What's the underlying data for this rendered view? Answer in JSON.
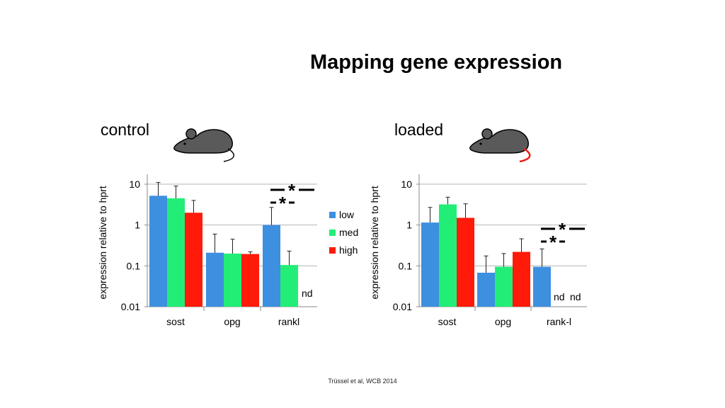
{
  "slide": {
    "title": "Mapping gene expression",
    "citation": "Trüssel et al, WCB 2014",
    "mouse_icon": "mouse-icon",
    "tail_colors": {
      "control": "#000000",
      "loaded": "#e8201a"
    }
  },
  "colors": {
    "low": "#3d8fe0",
    "med": "#22ee77",
    "high": "#ff1a0a"
  },
  "chart_data": [
    {
      "type": "bar",
      "panel": "control",
      "title": "control",
      "ylabel": "expression relative to hprt",
      "xlabel": "",
      "yscale": "log",
      "ylim": [
        0.01,
        10
      ],
      "yticks": [
        "10",
        "1",
        "0.1",
        "0.01"
      ],
      "yticks_values": [
        10,
        1,
        0.1,
        0.01
      ],
      "categories": [
        "sost",
        "opg",
        "rankl"
      ],
      "series": [
        {
          "name": "low",
          "values": [
            5.2,
            0.21,
            1.0
          ],
          "errors": [
            11,
            0.6,
            2.7
          ]
        },
        {
          "name": "med",
          "values": [
            4.5,
            0.2,
            0.105
          ],
          "errors": [
            9,
            0.45,
            0.23
          ]
        },
        {
          "name": "high",
          "values": [
            2.0,
            0.195,
            null
          ],
          "errors": [
            4,
            0.22,
            null
          ]
        }
      ],
      "legend": {
        "position": "right",
        "entries": [
          "low",
          "med",
          "high"
        ]
      },
      "annotations": {
        "nd": [
          "nd"
        ],
        "significance": [
          "*",
          "*"
        ]
      },
      "grid": true
    },
    {
      "type": "bar",
      "panel": "loaded",
      "title": "loaded",
      "ylabel": "expression relative to hprt",
      "xlabel": "",
      "yscale": "log",
      "ylim": [
        0.01,
        10
      ],
      "yticks": [
        "10",
        "1",
        "0.1",
        "0.01"
      ],
      "yticks_values": [
        10,
        1,
        0.1,
        0.01
      ],
      "categories": [
        "sost",
        "opg",
        "rank-l"
      ],
      "series": [
        {
          "name": "low",
          "values": [
            1.15,
            0.068,
            0.095
          ],
          "errors": [
            2.7,
            0.175,
            0.26
          ]
        },
        {
          "name": "med",
          "values": [
            3.2,
            0.095,
            null
          ],
          "errors": [
            4.8,
            0.2,
            null
          ]
        },
        {
          "name": "high",
          "values": [
            1.5,
            0.22,
            null
          ],
          "errors": [
            3.3,
            0.46,
            null
          ]
        }
      ],
      "annotations": {
        "nd": [
          "nd",
          "nd"
        ],
        "significance": [
          "*",
          "*"
        ]
      },
      "grid": true
    }
  ]
}
